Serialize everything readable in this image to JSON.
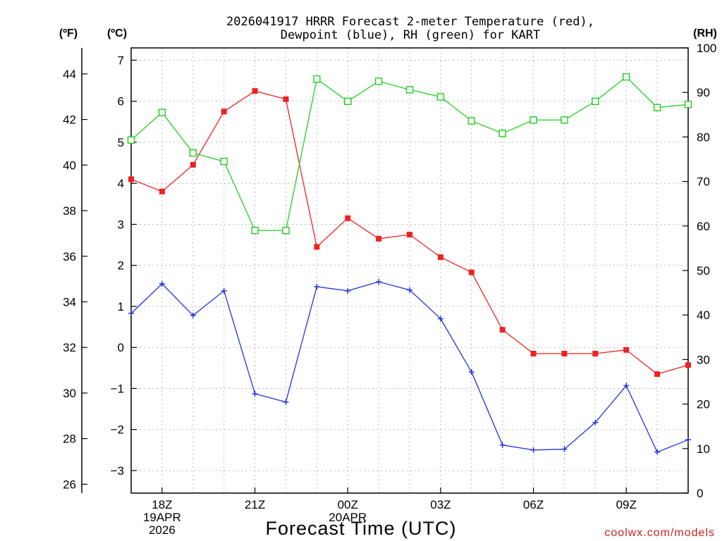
{
  "chart_data": {
    "type": "line",
    "title_line1": "2026041917 HRRR Forecast 2-meter Temperature (red),",
    "title_line2": "Dewpoint (blue), RH (green) for KART",
    "xlabel": "Forecast Time (UTC)",
    "watermark": "coolwx.com/models",
    "unit_left_outer": "(ºF)",
    "unit_left_inner": "(ºC)",
    "unit_right": "(RH)",
    "x_hours": [
      17,
      18,
      19,
      20,
      21,
      22,
      23,
      24,
      25,
      26,
      27,
      28,
      29,
      30,
      31,
      32,
      33,
      34,
      35
    ],
    "x_ticks": [
      {
        "hour": 18,
        "lines": [
          "18Z",
          "19APR",
          "2026"
        ]
      },
      {
        "hour": 21,
        "lines": [
          "21Z"
        ]
      },
      {
        "hour": 24,
        "lines": [
          "00Z",
          "20APR"
        ]
      },
      {
        "hour": 27,
        "lines": [
          "03Z"
        ]
      },
      {
        "hour": 30,
        "lines": [
          "06Z"
        ]
      },
      {
        "hour": 33,
        "lines": [
          "09Z"
        ]
      }
    ],
    "xlim": [
      17,
      35
    ],
    "celsius_axis": {
      "ylim": [
        -3.55,
        7.3
      ],
      "ticks": [
        -3,
        -2,
        -1,
        0,
        1,
        2,
        3,
        4,
        5,
        6,
        7
      ]
    },
    "fahrenheit_axis": {
      "ticks": [
        26,
        28,
        30,
        32,
        34,
        36,
        38,
        40,
        42,
        44
      ]
    },
    "rh_axis": {
      "ylim": [
        0,
        100
      ],
      "ticks": [
        0,
        10,
        20,
        30,
        40,
        50,
        60,
        70,
        80,
        90,
        100
      ]
    },
    "series": [
      {
        "name": "Temperature",
        "axis": "celsius",
        "color": "#ee2222",
        "marker": "filled-square",
        "values": [
          4.1,
          3.8,
          4.45,
          5.75,
          6.25,
          6.05,
          2.45,
          3.15,
          2.65,
          2.75,
          2.2,
          1.83,
          0.43,
          -0.15,
          -0.15,
          -0.15,
          -0.06,
          -0.65,
          -0.43
        ]
      },
      {
        "name": "Dewpoint",
        "axis": "celsius",
        "color": "#2233dd",
        "marker": "plus",
        "values": [
          0.83,
          1.55,
          0.78,
          1.38,
          -1.13,
          -1.33,
          1.48,
          1.38,
          1.6,
          1.4,
          0.7,
          -0.6,
          -2.38,
          -2.5,
          -2.48,
          -1.83,
          -0.93,
          -2.55,
          -2.25
        ]
      },
      {
        "name": "RH",
        "axis": "rh",
        "color": "#22cc22",
        "marker": "open-square",
        "values": [
          79.3,
          85.5,
          76.4,
          74.5,
          59,
          59,
          93,
          88,
          92.5,
          90.6,
          89,
          83.6,
          80.8,
          83.8,
          83.8,
          88,
          93.5,
          86.6,
          87.3
        ]
      }
    ]
  }
}
